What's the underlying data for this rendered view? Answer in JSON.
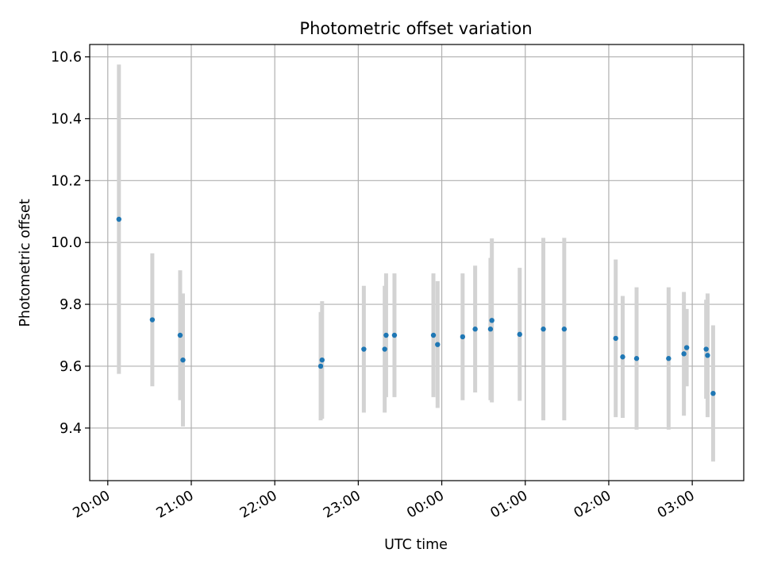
{
  "chart_data": {
    "type": "scatter",
    "title": "Photometric offset variation",
    "xlabel": "UTC time",
    "ylabel": "Photometric offset",
    "x_ticks": [
      "20:00",
      "21:00",
      "22:00",
      "23:00",
      "00:00",
      "01:00",
      "02:00",
      "03:00"
    ],
    "y_ticks": [
      "9.4",
      "9.6",
      "9.8",
      "10.0",
      "10.2",
      "10.4",
      "10.6"
    ],
    "x_range": [
      "19:47",
      "03:37"
    ],
    "ylim": [
      9.23,
      10.64
    ],
    "grid": true,
    "marker_color": "#1f77b4",
    "errorbar_color": "#d3d3d3",
    "series": [
      {
        "points": [
          {
            "t": "20:08",
            "y": 10.075,
            "err": 0.5
          },
          {
            "t": "20:32",
            "y": 9.75,
            "err": 0.215
          },
          {
            "t": "20:52",
            "y": 9.7,
            "err": 0.21
          },
          {
            "t": "20:54",
            "y": 9.62,
            "err": 0.215
          },
          {
            "t": "22:33",
            "y": 9.6,
            "err": 0.175
          },
          {
            "t": "22:34",
            "y": 9.62,
            "err": 0.19
          },
          {
            "t": "23:04",
            "y": 9.655,
            "err": 0.205
          },
          {
            "t": "23:19",
            "y": 9.655,
            "err": 0.205
          },
          {
            "t": "23:20",
            "y": 9.7,
            "err": 0.2
          },
          {
            "t": "23:26",
            "y": 9.7,
            "err": 0.2
          },
          {
            "t": "23:54",
            "y": 9.7,
            "err": 0.2
          },
          {
            "t": "23:57",
            "y": 9.67,
            "err": 0.205
          },
          {
            "t": "00:15",
            "y": 9.695,
            "err": 0.205
          },
          {
            "t": "00:24",
            "y": 9.72,
            "err": 0.205
          },
          {
            "t": "00:35",
            "y": 9.72,
            "err": 0.23
          },
          {
            "t": "00:36",
            "y": 9.748,
            "err": 0.265
          },
          {
            "t": "00:56",
            "y": 9.703,
            "err": 0.215
          },
          {
            "t": "01:13",
            "y": 9.72,
            "err": 0.295
          },
          {
            "t": "01:28",
            "y": 9.72,
            "err": 0.295
          },
          {
            "t": "02:05",
            "y": 9.69,
            "err": 0.255
          },
          {
            "t": "02:10",
            "y": 9.63,
            "err": 0.197
          },
          {
            "t": "02:20",
            "y": 9.625,
            "err": 0.23
          },
          {
            "t": "02:43",
            "y": 9.625,
            "err": 0.23
          },
          {
            "t": "02:54",
            "y": 9.64,
            "err": 0.2
          },
          {
            "t": "02:56",
            "y": 9.66,
            "err": 0.125
          },
          {
            "t": "03:10",
            "y": 9.655,
            "err": 0.16
          },
          {
            "t": "03:11",
            "y": 9.635,
            "err": 0.2
          },
          {
            "t": "03:15",
            "y": 9.512,
            "err": 0.22
          }
        ]
      }
    ]
  }
}
